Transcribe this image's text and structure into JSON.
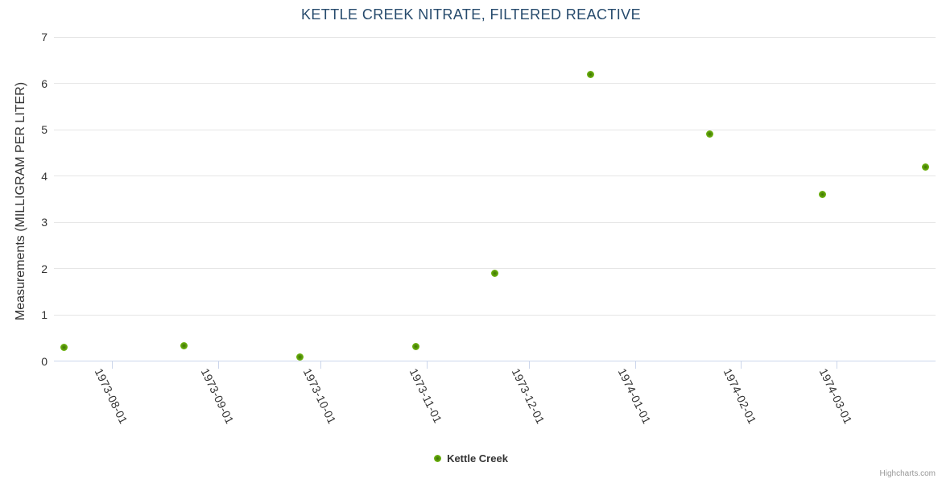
{
  "title": "KETTLE CREEK NITRATE, FILTERED REACTIVE",
  "legend": {
    "label": "Kettle Creek"
  },
  "credits": {
    "label": "Highcharts.com"
  },
  "colors": {
    "title": "#274b6d",
    "text": "#333333",
    "grid": "#e6e6e6",
    "axis_line": "#ccd6eb",
    "marker_outer": "#79c215",
    "marker_inner": "#3e7206",
    "credits": "#999999"
  },
  "chart_data": {
    "type": "scatter",
    "title": "KETTLE CREEK NITRATE, FILTERED REACTIVE",
    "xlabel": "",
    "ylabel": "Measurements (MILLIGRAM PER LITER)",
    "ylim": [
      0,
      7
    ],
    "y_tick_interval": 1,
    "y_ticks": [
      0,
      1,
      2,
      3,
      4,
      5,
      6,
      7
    ],
    "x_range": [
      "1973-07-15",
      "1974-03-30"
    ],
    "x_ticks": [
      "1973-08-01",
      "1973-09-01",
      "1973-10-01",
      "1973-11-01",
      "1973-12-01",
      "1974-01-01",
      "1974-02-01",
      "1974-03-01"
    ],
    "grid": "horizontal-only",
    "legend_position": "bottom-center",
    "series": [
      {
        "name": "Kettle Creek",
        "points": [
          {
            "date": "1973-07-18",
            "value": 0.31
          },
          {
            "date": "1973-08-22",
            "value": 0.34
          },
          {
            "date": "1973-09-25",
            "value": 0.1
          },
          {
            "date": "1973-10-29",
            "value": 0.33
          },
          {
            "date": "1973-11-21",
            "value": 1.9
          },
          {
            "date": "1973-12-19",
            "value": 6.2
          },
          {
            "date": "1974-01-23",
            "value": 4.9
          },
          {
            "date": "1974-02-25",
            "value": 3.6
          },
          {
            "date": "1974-03-27",
            "value": 4.2
          }
        ]
      }
    ]
  }
}
